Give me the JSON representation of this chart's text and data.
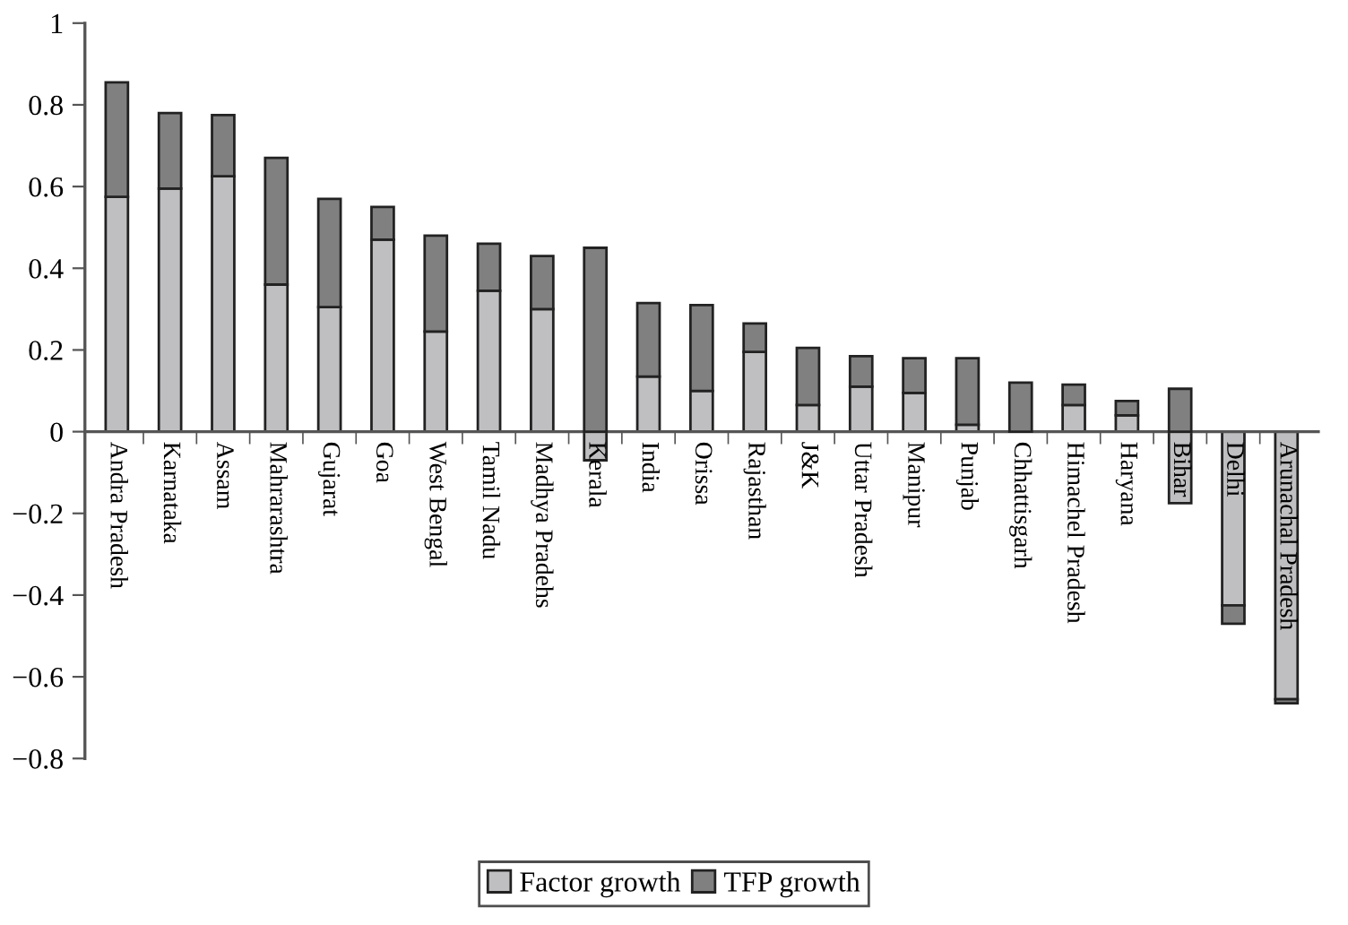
{
  "chart_data": {
    "type": "bar",
    "stacked": true,
    "categories": [
      "Andra Pradesh",
      "Karnataka",
      "Assam",
      "Mahrarashtra",
      "Gujarat",
      "Goa",
      "West Bengal",
      "Tamil Nadu",
      "Madhya Pradehs",
      "Kerala",
      "India",
      "Orissa",
      "Rajasthan",
      "J&K",
      "Uttar Pradesh",
      "Manipur",
      "Punjab",
      "Chhattisgarh",
      "Himachel Pradesh",
      "Haryana",
      "Bihar",
      "Delhi",
      "Arunachal Pradesh"
    ],
    "series": [
      {
        "name": "Factor growth",
        "color": "#bfbfc1",
        "values": [
          0.575,
          0.595,
          0.625,
          0.36,
          0.305,
          0.47,
          0.245,
          0.345,
          0.3,
          -0.07,
          0.135,
          0.1,
          0.195,
          0.065,
          0.11,
          0.095,
          0.017,
          0,
          0.065,
          0.04,
          -0.175,
          -0.425,
          -0.655
        ]
      },
      {
        "name": "TFP growth",
        "color": "#808080",
        "values": [
          0.28,
          0.185,
          0.15,
          0.31,
          0.265,
          0.08,
          0.235,
          0.115,
          0.13,
          0.45,
          0.18,
          0.21,
          0.07,
          0.14,
          0.075,
          0.085,
          0.163,
          0.12,
          0.05,
          0.035,
          0.105,
          -0.045,
          -0.01
        ]
      }
    ],
    "ylim": [
      -0.8,
      1
    ],
    "yticks": [
      {
        "value": -0.8,
        "label": "−0.8"
      },
      {
        "value": -0.6,
        "label": "−0.6"
      },
      {
        "value": -0.4,
        "label": "−0.4"
      },
      {
        "value": -0.2,
        "label": "−0.2"
      },
      0,
      0.2,
      0.4,
      0.6,
      0.8,
      1
    ],
    "grid": false,
    "legend": "bottom"
  }
}
